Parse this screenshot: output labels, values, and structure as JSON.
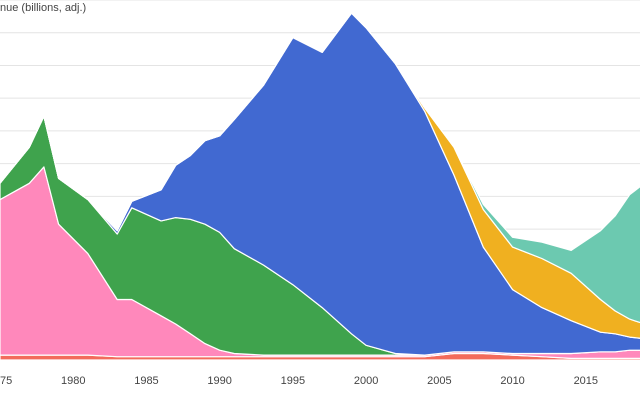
{
  "chart_data": {
    "type": "stacked-area",
    "title": "nue (billions, adj.)",
    "x": [
      1975,
      1977,
      1978,
      1979,
      1981,
      1983,
      1984,
      1986,
      1987,
      1988,
      1989,
      1990,
      1991,
      1993,
      1995,
      1997,
      1999,
      2000,
      2002,
      2004,
      2006,
      2008,
      2010,
      2012,
      2014,
      2016,
      2017,
      2018,
      2019
    ],
    "series": [
      {
        "color": "#f36b5c",
        "values": [
          0.3,
          0.3,
          0.3,
          0.3,
          0.3,
          0.2,
          0.2,
          0.2,
          0.2,
          0.2,
          0.2,
          0.2,
          0.2,
          0.2,
          0.2,
          0.2,
          0.2,
          0.2,
          0.2,
          0.2,
          0.4,
          0.4,
          0.3,
          0.2,
          0.1,
          0.1,
          0.1,
          0.1,
          0.1
        ]
      },
      {
        "color": "#ff88bb",
        "values": [
          9.5,
          10.5,
          11.5,
          8,
          6.2,
          3.5,
          3.5,
          2.5,
          2,
          1.4,
          0.8,
          0.4,
          0.2,
          0.1,
          0.1,
          0.1,
          0.1,
          0.1,
          0.1,
          0.1,
          0.1,
          0.1,
          0.1,
          0.2,
          0.3,
          0.4,
          0.4,
          0.5,
          0.5
        ]
      },
      {
        "color": "#3fa34d",
        "values": [
          1,
          2.2,
          3.1,
          2.8,
          3.3,
          4,
          5.6,
          5.8,
          6.5,
          7,
          7.3,
          7.2,
          6.4,
          5.5,
          4.3,
          2.9,
          1.3,
          0.6,
          0.1,
          0,
          0,
          0,
          0,
          0,
          0,
          0,
          0,
          0,
          0
        ]
      },
      {
        "color": "#4169d1",
        "values": [
          0,
          0,
          0,
          0,
          0,
          0.2,
          0.4,
          1.9,
          3.2,
          3.9,
          5.1,
          5.9,
          7.9,
          11,
          15.1,
          15.6,
          19.6,
          19.4,
          17.7,
          14.9,
          10.8,
          6.4,
          3.9,
          2.8,
          2,
          1.2,
          1.1,
          0.8,
          0.7
        ]
      },
      {
        "color": "#f0b020",
        "values": [
          0,
          0,
          0,
          0,
          0,
          0,
          0,
          0,
          0,
          0,
          0,
          0,
          0,
          0,
          0,
          0,
          0,
          0,
          0,
          0.2,
          1.7,
          2.3,
          2.6,
          3,
          2.9,
          2,
          1.4,
          1.1,
          0.9
        ]
      },
      {
        "color": "#6cc9b0",
        "values": [
          0,
          0,
          0,
          0,
          0,
          0,
          0,
          0,
          0,
          0,
          0,
          0,
          0,
          0,
          0,
          0,
          0,
          0,
          0,
          0,
          0,
          0.3,
          0.6,
          1,
          1.4,
          4.2,
          5.8,
          7.6,
          8.6
        ]
      }
    ],
    "xlim": [
      1975,
      2018.7
    ],
    "xticks": [
      {
        "value": 1975,
        "label": "75"
      },
      1980,
      1985,
      1990,
      1995,
      2000,
      2005,
      2010,
      2015
    ],
    "ylim": [
      0,
      22
    ],
    "yticks": [
      2,
      4,
      6,
      8,
      10,
      12,
      14,
      16,
      18,
      20,
      22
    ],
    "grid": true
  }
}
